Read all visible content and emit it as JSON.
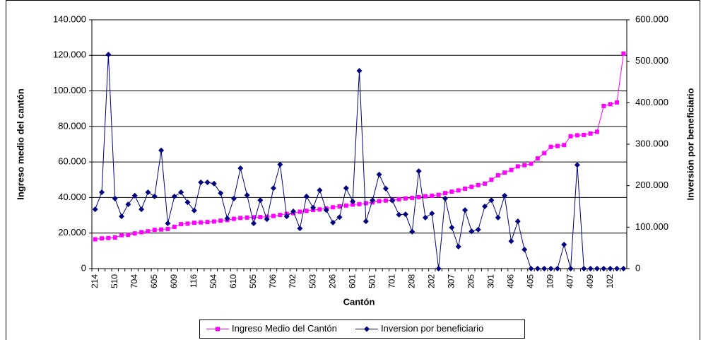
{
  "chart_data": {
    "type": "line",
    "xlabel": "Cantón",
    "ylabel": "Ingreso medio del cantón",
    "y2label": "Inversión por beneficiario",
    "categories": [
      "214",
      null,
      null,
      "510",
      null,
      null,
      "704",
      null,
      null,
      "605",
      null,
      null,
      "609",
      null,
      null,
      "116",
      null,
      null,
      "504",
      null,
      null,
      "610",
      null,
      null,
      "505",
      null,
      null,
      "706",
      null,
      null,
      "702",
      null,
      null,
      "503",
      null,
      null,
      "206",
      null,
      null,
      "601",
      null,
      null,
      "501",
      null,
      null,
      "701",
      null,
      null,
      "208",
      null,
      null,
      "202",
      null,
      null,
      "307",
      null,
      null,
      "205",
      null,
      null,
      "301",
      null,
      null,
      "406",
      null,
      null,
      "405",
      null,
      null,
      "109",
      null,
      null,
      "407",
      null,
      null,
      "409",
      null,
      null,
      "102",
      null,
      null
    ],
    "series": [
      {
        "name": "Ingreso Medio del Cantón",
        "color": "#ff00ff",
        "marker": "square",
        "axis": "y",
        "values": [
          16500,
          17000,
          17200,
          17500,
          18800,
          19000,
          19800,
          20500,
          21000,
          21800,
          22000,
          22300,
          23500,
          25000,
          25300,
          25800,
          26000,
          26200,
          26500,
          27000,
          27300,
          28000,
          28500,
          28700,
          28900,
          29000,
          29200,
          29600,
          30200,
          30800,
          31200,
          32000,
          32500,
          33000,
          33300,
          33800,
          34500,
          35000,
          35500,
          36000,
          36300,
          36800,
          37300,
          38000,
          38300,
          38600,
          39000,
          39500,
          39800,
          40200,
          40700,
          41000,
          41500,
          42500,
          43300,
          44000,
          45000,
          46000,
          47000,
          47800,
          50000,
          52500,
          54000,
          55500,
          57500,
          58200,
          59000,
          62000,
          65000,
          68500,
          69000,
          69500,
          74500,
          75000,
          75200,
          76000,
          77000,
          91500,
          92500,
          93500,
          121000
        ]
      },
      {
        "name": "Inversion por beneficiario",
        "color": "#000080",
        "marker": "diamond",
        "axis": "y2",
        "values": [
          143000,
          184000,
          516000,
          169000,
          126000,
          155000,
          176000,
          143000,
          184000,
          174000,
          285000,
          109000,
          174000,
          184000,
          160000,
          140000,
          208000,
          208000,
          205000,
          182000,
          121000,
          169000,
          242000,
          177000,
          109000,
          165000,
          119000,
          194000,
          251000,
          126000,
          138000,
          97000,
          174000,
          147000,
          189000,
          141000,
          111000,
          124000,
          194000,
          162000,
          477000,
          114000,
          165000,
          227000,
          193000,
          164000,
          130000,
          131000,
          89000,
          235000,
          123000,
          133000,
          0,
          169000,
          99000,
          53000,
          141000,
          90000,
          94000,
          150000,
          165000,
          123000,
          176000,
          66000,
          114000,
          46000,
          0,
          0,
          0,
          0,
          0,
          58000,
          0,
          250000,
          0,
          0,
          0,
          0,
          0,
          0,
          0
        ]
      }
    ],
    "ylim": [
      0,
      140000
    ],
    "yticks": [
      0,
      {
        "value": 20000,
        "label": "20.000"
      },
      {
        "value": 40000,
        "label": "40.000"
      },
      {
        "value": 60000,
        "label": "60.000"
      },
      {
        "value": 80000,
        "label": "80.000"
      },
      {
        "value": 100000,
        "label": "100.000"
      },
      {
        "value": 120000,
        "label": "120.000"
      },
      {
        "value": 140000,
        "label": "140.000"
      }
    ],
    "y2lim": [
      0,
      600000
    ],
    "y2ticks": [
      0,
      {
        "value": 100000,
        "label": "100.000"
      },
      {
        "value": 200000,
        "label": "200.000"
      },
      {
        "value": 300000,
        "label": "300.000"
      },
      {
        "value": 400000,
        "label": "400.000"
      },
      {
        "value": 500000,
        "label": "500.000"
      },
      {
        "value": 600000,
        "label": "600.000"
      }
    ],
    "grid": true,
    "legend": "bottom"
  }
}
